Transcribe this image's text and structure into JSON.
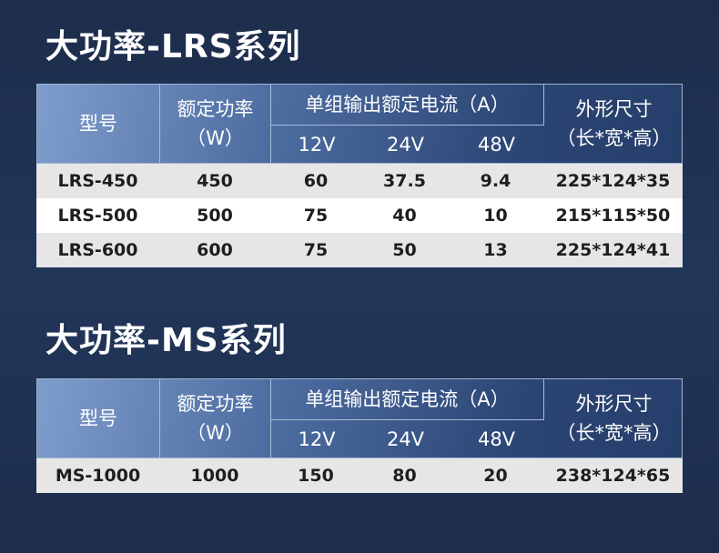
{
  "sections": [
    {
      "title": "大功率-LRS系列",
      "table": {
        "headers": {
          "model": "型号",
          "power": "额定功率",
          "power_unit": "（W）",
          "current": "单组输出额定电流（A）",
          "voltages": [
            "12V",
            "24V",
            "48V"
          ],
          "size": "外形尺寸",
          "size_dims": "（长*宽*高）"
        },
        "rows": [
          [
            "LRS-450",
            "450",
            "60",
            "37.5",
            "9.4",
            "225*124*35"
          ],
          [
            "LRS-500",
            "500",
            "75",
            "40",
            "10",
            "215*115*50"
          ],
          [
            "LRS-600",
            "600",
            "75",
            "50",
            "13",
            "225*124*41"
          ]
        ]
      }
    },
    {
      "title": "大功率-MS系列",
      "table": {
        "headers": {
          "model": "型号",
          "power": "额定功率",
          "power_unit": "（W）",
          "current": "单组输出额定电流（A）",
          "voltages": [
            "12V",
            "24V",
            "48V"
          ],
          "size": "外形尺寸",
          "size_dims": "（长*宽*高）"
        },
        "rows": [
          [
            "MS-1000",
            "1000",
            "150",
            "80",
            "20",
            "238*124*65"
          ]
        ]
      }
    }
  ]
}
